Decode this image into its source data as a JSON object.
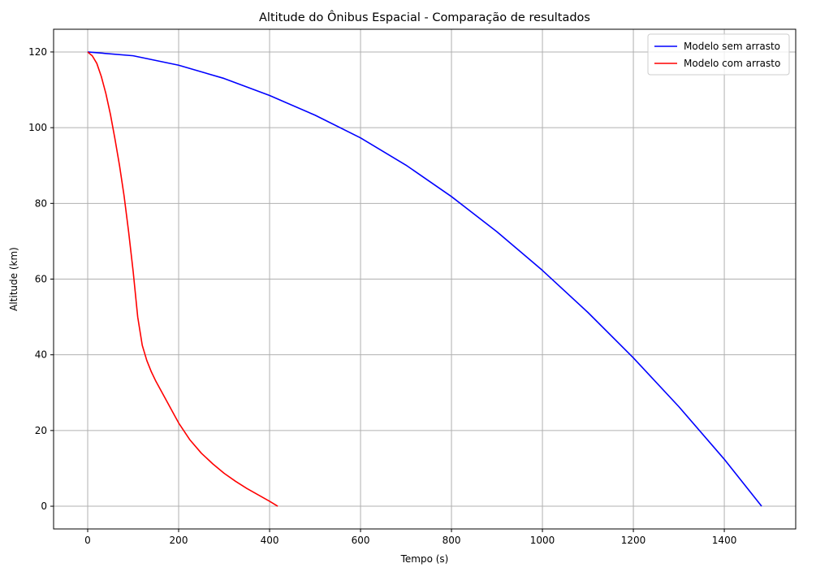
{
  "chart_data": {
    "type": "line",
    "title": "Altitude do Ônibus Espacial - Comparação de resultados",
    "xlabel": "Tempo (s)",
    "ylabel": "Altitude (km)",
    "xlim": [
      -75,
      1557
    ],
    "ylim": [
      -6,
      126
    ],
    "xticks": [
      0,
      200,
      400,
      600,
      800,
      1000,
      1200,
      1400
    ],
    "yticks": [
      0,
      20,
      40,
      60,
      80,
      100,
      120
    ],
    "grid": true,
    "legend_position": "top-right",
    "series": [
      {
        "name": "Modelo sem arrasto",
        "color": "#0000ff",
        "x": [
          0,
          100,
          200,
          300,
          400,
          500,
          600,
          700,
          800,
          900,
          1000,
          1100,
          1200,
          1300,
          1400,
          1482
        ],
        "y": [
          120,
          119,
          116.5,
          113,
          108.5,
          103.3,
          97.3,
          90.1,
          81.8,
          72.5,
          62.3,
          51.2,
          39.2,
          26.3,
          12.4,
          0
        ]
      },
      {
        "name": "Modelo com arrasto",
        "color": "#ff0000",
        "x": [
          0,
          10,
          20,
          30,
          40,
          50,
          60,
          70,
          80,
          90,
          100,
          110,
          120,
          130,
          140,
          150,
          175,
          200,
          225,
          250,
          275,
          300,
          325,
          350,
          375,
          400,
          418
        ],
        "y": [
          120,
          119,
          117,
          113.5,
          109,
          103.5,
          97,
          90,
          82,
          72.5,
          62,
          50,
          42.5,
          38.5,
          35.5,
          33,
          27.5,
          22,
          17.5,
          14,
          11.2,
          8.7,
          6.6,
          4.7,
          3,
          1.3,
          0
        ]
      }
    ]
  }
}
